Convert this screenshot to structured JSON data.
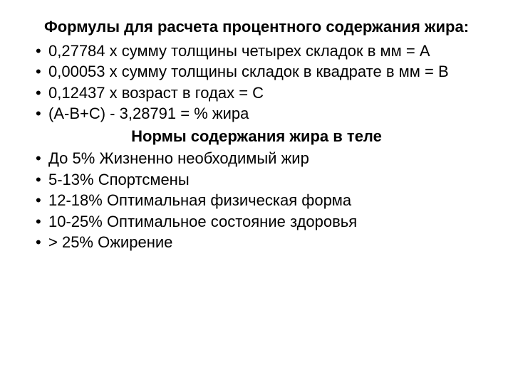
{
  "heading1": "Формулы для расчета процентного содержания жира:",
  "formulae": [
    "0,27784 х сумму толщины четырех складок в мм = А",
    "0,00053 х сумму толщины складок в квадрате в мм = В",
    "0,12437 х возраст в годах = С",
    "(А-В+С) - 3,28791 = % жира"
  ],
  "heading2": "Нормы содержания жира в теле",
  "norms": [
    "До 5% Жизненно необходимый жир",
    "5-13%  Спортсмены",
    "12-18%     Оптимальная физическая форма",
    "10-25%     Оптимальное состояние здоровья",
    "> 25%  Ожирение"
  ]
}
